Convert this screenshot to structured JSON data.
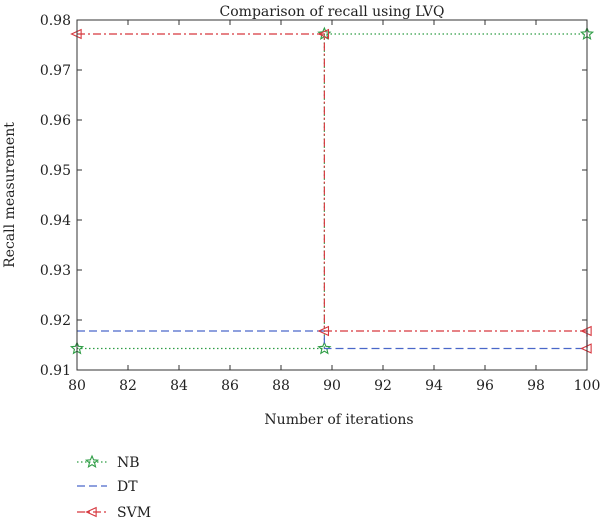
{
  "chart_data": {
    "type": "line",
    "title": "Comparison of recall using LVQ",
    "xlabel": "Number of iterations",
    "ylabel": "Recall measurement",
    "xlim": [
      80,
      100
    ],
    "ylim": [
      0.91,
      0.98
    ],
    "xticks": [
      "80",
      "82",
      "84",
      "86",
      "88",
      "90",
      "92",
      "94",
      "96",
      "98",
      "100"
    ],
    "yticks": [
      "0.91",
      "0.92",
      "0.93",
      "0.94",
      "0.95",
      "0.96",
      "0.97",
      "0.98"
    ],
    "grid": false,
    "legend_position": "bottom-left",
    "series": [
      {
        "name": "NB",
        "color": "#2e9d45",
        "line_style": "dotted",
        "marker": "star",
        "points": [
          [
            80,
            0.9143
          ],
          [
            89.7,
            0.9143
          ],
          [
            89.7,
            0.9772
          ],
          [
            100,
            0.9772
          ]
        ]
      },
      {
        "name": "DT",
        "color": "#4a67c9",
        "line_style": "dashed",
        "marker": "none",
        "points": [
          [
            80,
            0.9178
          ],
          [
            89.7,
            0.9178
          ],
          [
            89.7,
            0.9143
          ],
          [
            100,
            0.9143
          ],
          [
            100,
            0.9178
          ]
        ]
      },
      {
        "name": "SVM",
        "color": "#d6383f",
        "line_style": "dashdot",
        "marker": "triangle-left",
        "points": [
          [
            80,
            0.9772
          ],
          [
            89.7,
            0.9772
          ],
          [
            89.7,
            0.9178
          ],
          [
            100,
            0.9178
          ],
          [
            100,
            0.9143
          ]
        ]
      }
    ]
  }
}
